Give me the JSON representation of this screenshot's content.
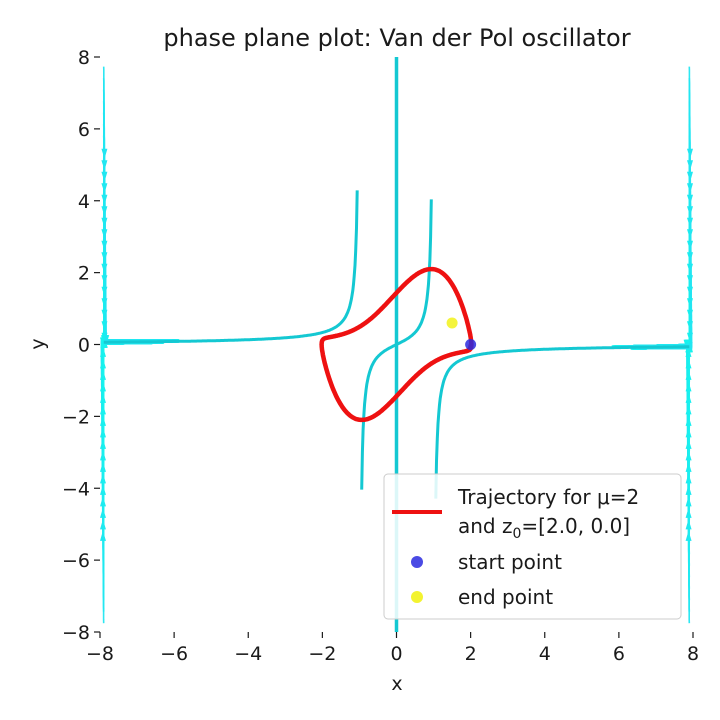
{
  "chart_data": {
    "type": "line",
    "title": "phase plane plot: Van der Pol oscillator",
    "xlabel": "x",
    "ylabel": "y",
    "xlim": [
      -8,
      8
    ],
    "ylim": [
      -8,
      8
    ],
    "xticks": [
      -8,
      -6,
      -4,
      -2,
      0,
      2,
      4,
      6,
      8
    ],
    "yticks": [
      -8,
      -6,
      -4,
      -2,
      0,
      2,
      4,
      6,
      8
    ],
    "xtick_labels": [
      "−8",
      "−6",
      "−4",
      "−2",
      "0",
      "2",
      "4",
      "6",
      "8"
    ],
    "ytick_labels": [
      "−8",
      "−6",
      "−4",
      "−2",
      "0",
      "2",
      "4",
      "6",
      "8"
    ],
    "grid": false,
    "legend_position": "lower-right",
    "mu": 2,
    "nullcline_x": 0,
    "nullcline_label": "",
    "series": [
      {
        "name": "Trajectory for μ=2 and z0=[2.0, 0.0]",
        "color": "#ee1111",
        "points": [
          [
            2.0,
            0.0
          ],
          [
            1.6,
            0.5
          ],
          [
            1.0,
            1.1
          ],
          [
            0.0,
            1.3
          ],
          [
            -1.0,
            1.25
          ],
          [
            -1.8,
            1.1
          ],
          [
            -2.0,
            0.8
          ],
          [
            -1.6,
            0.0
          ],
          [
            -1.2,
            -0.6
          ],
          [
            -0.6,
            -1.2
          ],
          [
            0.0,
            -1.3
          ],
          [
            1.0,
            -1.25
          ],
          [
            1.8,
            -1.1
          ],
          [
            2.0,
            -0.8
          ],
          [
            1.6,
            0.0
          ],
          [
            1.5,
            0.6
          ]
        ]
      }
    ],
    "markers": [
      {
        "name": "start point",
        "x": 2.0,
        "y": 0.0,
        "color": "#2a2adf"
      },
      {
        "name": "end point",
        "x": 1.5,
        "y": 0.6,
        "color": "#f2f21a"
      }
    ],
    "legend": {
      "line1": "Trajectory for μ=2",
      "line2_prefix": "and z",
      "line2_sub": "0",
      "line2_suffix": "=[2.0, 0.0]",
      "start": "start point",
      "end": "end point"
    },
    "colors": {
      "streamline_low": "#17f2ee",
      "streamline_mid": "#5fa8ff",
      "streamline_high": "#f500f5",
      "nullcline": "#14c8d2",
      "trajectory": "#ee1111"
    }
  }
}
